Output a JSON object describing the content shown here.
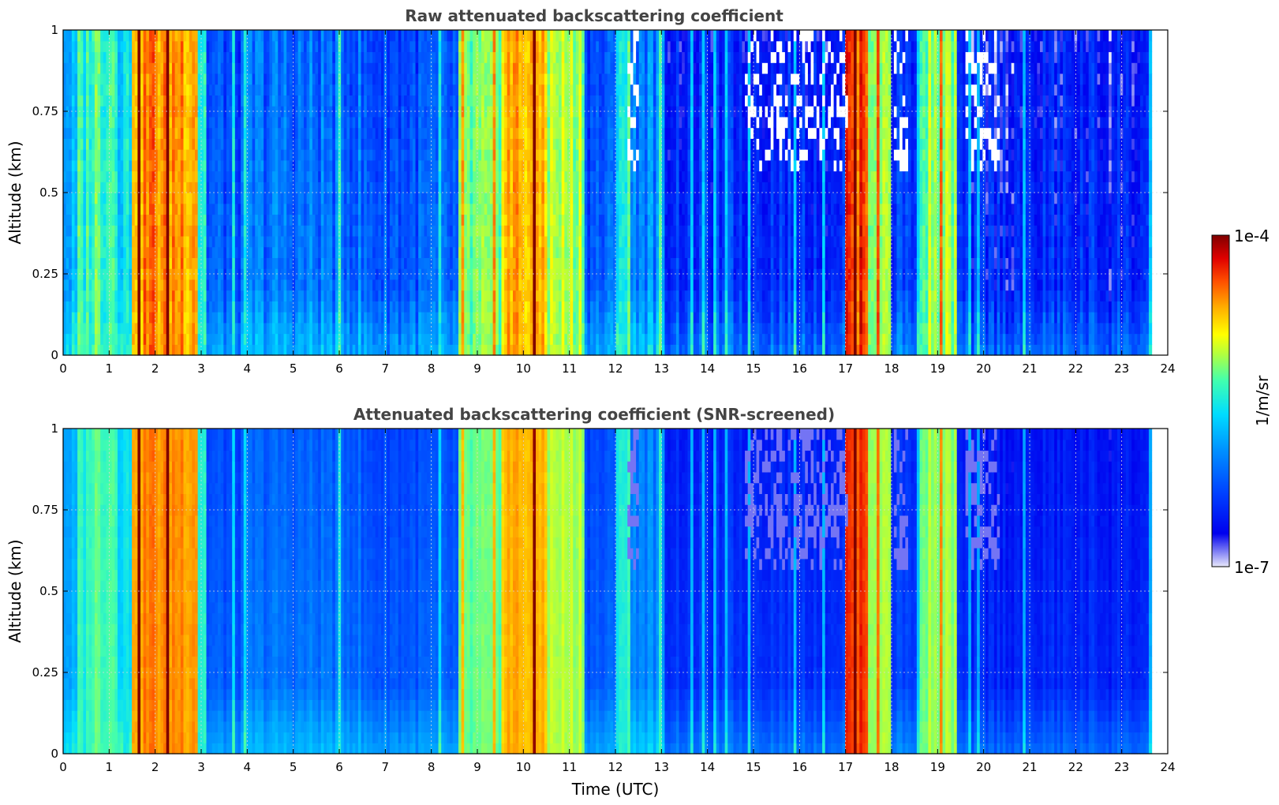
{
  "chart_data": [
    {
      "type": "heatmap",
      "title": "Raw attenuated backscattering coefficient",
      "xlabel": "",
      "ylabel": "Altitude (km)",
      "xlim": [
        0,
        24
      ],
      "ylim": [
        0,
        1
      ],
      "x_ticks": [
        "0",
        "1",
        "2",
        "3",
        "4",
        "5",
        "6",
        "7",
        "8",
        "9",
        "10",
        "11",
        "12",
        "13",
        "14",
        "15",
        "16",
        "17",
        "18",
        "19",
        "20",
        "21",
        "22",
        "23",
        "24"
      ],
      "y_ticks": [
        "0",
        "0.25",
        "0.5",
        "0.75",
        "1"
      ],
      "data_extent_hours": [
        0,
        23.65
      ],
      "grid": true,
      "variant": "raw",
      "time_segments_utc": [
        {
          "t0": 0.0,
          "t1": 0.3,
          "level": 0.35
        },
        {
          "t0": 0.3,
          "t1": 0.55,
          "level": 0.5
        },
        {
          "t0": 0.55,
          "t1": 1.2,
          "level": 0.55
        },
        {
          "t0": 1.2,
          "t1": 1.5,
          "level": 0.45
        },
        {
          "t0": 1.5,
          "t1": 2.9,
          "level": 0.82
        },
        {
          "t0": 2.9,
          "t1": 3.1,
          "level": 0.5
        },
        {
          "t0": 3.1,
          "t1": 4.0,
          "level": 0.22
        },
        {
          "t0": 4.0,
          "t1": 6.5,
          "level": 0.26
        },
        {
          "t0": 6.5,
          "t1": 8.6,
          "level": 0.22
        },
        {
          "t0": 8.6,
          "t1": 9.5,
          "level": 0.55
        },
        {
          "t0": 9.5,
          "t1": 10.5,
          "level": 0.78
        },
        {
          "t0": 10.5,
          "t1": 11.3,
          "level": 0.62
        },
        {
          "t0": 11.3,
          "t1": 12.0,
          "level": 0.22
        },
        {
          "t0": 12.0,
          "t1": 12.3,
          "level": 0.5
        },
        {
          "t0": 12.3,
          "t1": 13.1,
          "level": 0.3
        },
        {
          "t0": 13.1,
          "t1": 17.0,
          "level": 0.16
        },
        {
          "t0": 17.0,
          "t1": 17.5,
          "level": 0.9
        },
        {
          "t0": 17.5,
          "t1": 18.0,
          "level": 0.62
        },
        {
          "t0": 18.0,
          "t1": 18.6,
          "level": 0.18
        },
        {
          "t0": 18.6,
          "t1": 19.4,
          "level": 0.6
        },
        {
          "t0": 19.4,
          "t1": 23.65,
          "level": 0.13
        }
      ]
    },
    {
      "type": "heatmap",
      "title": "Attenuated backscattering coefficient (SNR-screened)",
      "xlabel": "Time (UTC)",
      "ylabel": "Altitude (km)",
      "xlim": [
        0,
        24
      ],
      "ylim": [
        0,
        1
      ],
      "x_ticks": [
        "0",
        "1",
        "2",
        "3",
        "4",
        "5",
        "6",
        "7",
        "8",
        "9",
        "10",
        "11",
        "12",
        "13",
        "14",
        "15",
        "16",
        "17",
        "18",
        "19",
        "20",
        "21",
        "22",
        "23",
        "24"
      ],
      "y_ticks": [
        "0",
        "0.25",
        "0.5",
        "0.75",
        "1"
      ],
      "data_extent_hours": [
        0,
        23.65
      ],
      "grid": true,
      "variant": "screened"
    }
  ],
  "colorbar": {
    "label": "1/m/sr",
    "min_label": "1e-7",
    "max_label": "1e-4",
    "colormap": "jet",
    "low_color": "#e6e6fa",
    "high_color": "#800000"
  }
}
